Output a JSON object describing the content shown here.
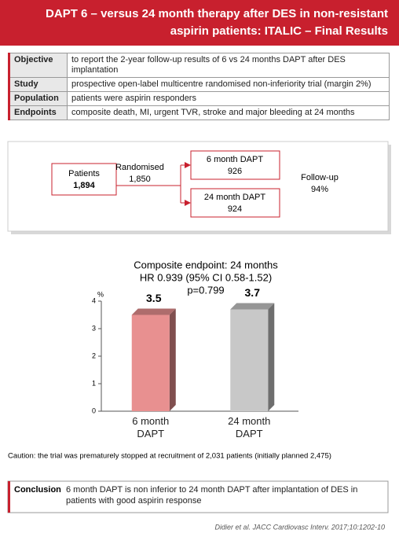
{
  "header": {
    "title": [
      "DAPT 6 – versus 24 month therapy after DES in non-resistant",
      "aspirin patients: ITALIC – Final Results"
    ]
  },
  "table": {
    "rows": [
      [
        "Objective",
        "to report the 2-year follow-up results of 6 vs 24 months DAPT after DES implantation"
      ],
      [
        "Study",
        "prospective open-label multicentre randomised non-inferiority trial (margin 2%)"
      ],
      [
        "Population",
        "patients were aspirin responders"
      ],
      [
        "Endpoints",
        "composite death, MI, urgent TVR, stroke and major bleeding at 24 months"
      ]
    ]
  },
  "diagram": {
    "patients": {
      "label": "Patients",
      "value": "1,894"
    },
    "randomised": {
      "label": "Randomised",
      "value": "1,850"
    },
    "arm1": {
      "label": "6 month DAPT",
      "value": "926"
    },
    "arm2": {
      "label": "24 month DAPT",
      "value": "924"
    },
    "followup": {
      "label": "Follow-up",
      "value": "94%"
    }
  },
  "chart_data": {
    "type": "bar",
    "title": [
      "Composite endpoint: 24 months",
      "HR 0.939 (95% CI 0.58-1.52)",
      "p=0.799"
    ],
    "y_label": "%",
    "categories": [
      "6 month DAPT",
      "24 month DAPT"
    ],
    "values": [
      3.5,
      3.7
    ],
    "colors": [
      "#e89090",
      "#c8c8c8"
    ],
    "ylim": [
      0,
      4
    ],
    "yticks": [
      0,
      1,
      2,
      3,
      4
    ]
  },
  "caution": "Caution: the trial was prematurely stopped at recruitment of 2,031 patients (initially planned 2,475)",
  "conclusion": {
    "label": "Conclusion",
    "text": "6 month DAPT is non inferior to 24 month DAPT after implantation of DES in patients with good aspirin response"
  },
  "citation": "Didier et al. JACC Cardiovasc Interv. 2017;10:1202-10"
}
